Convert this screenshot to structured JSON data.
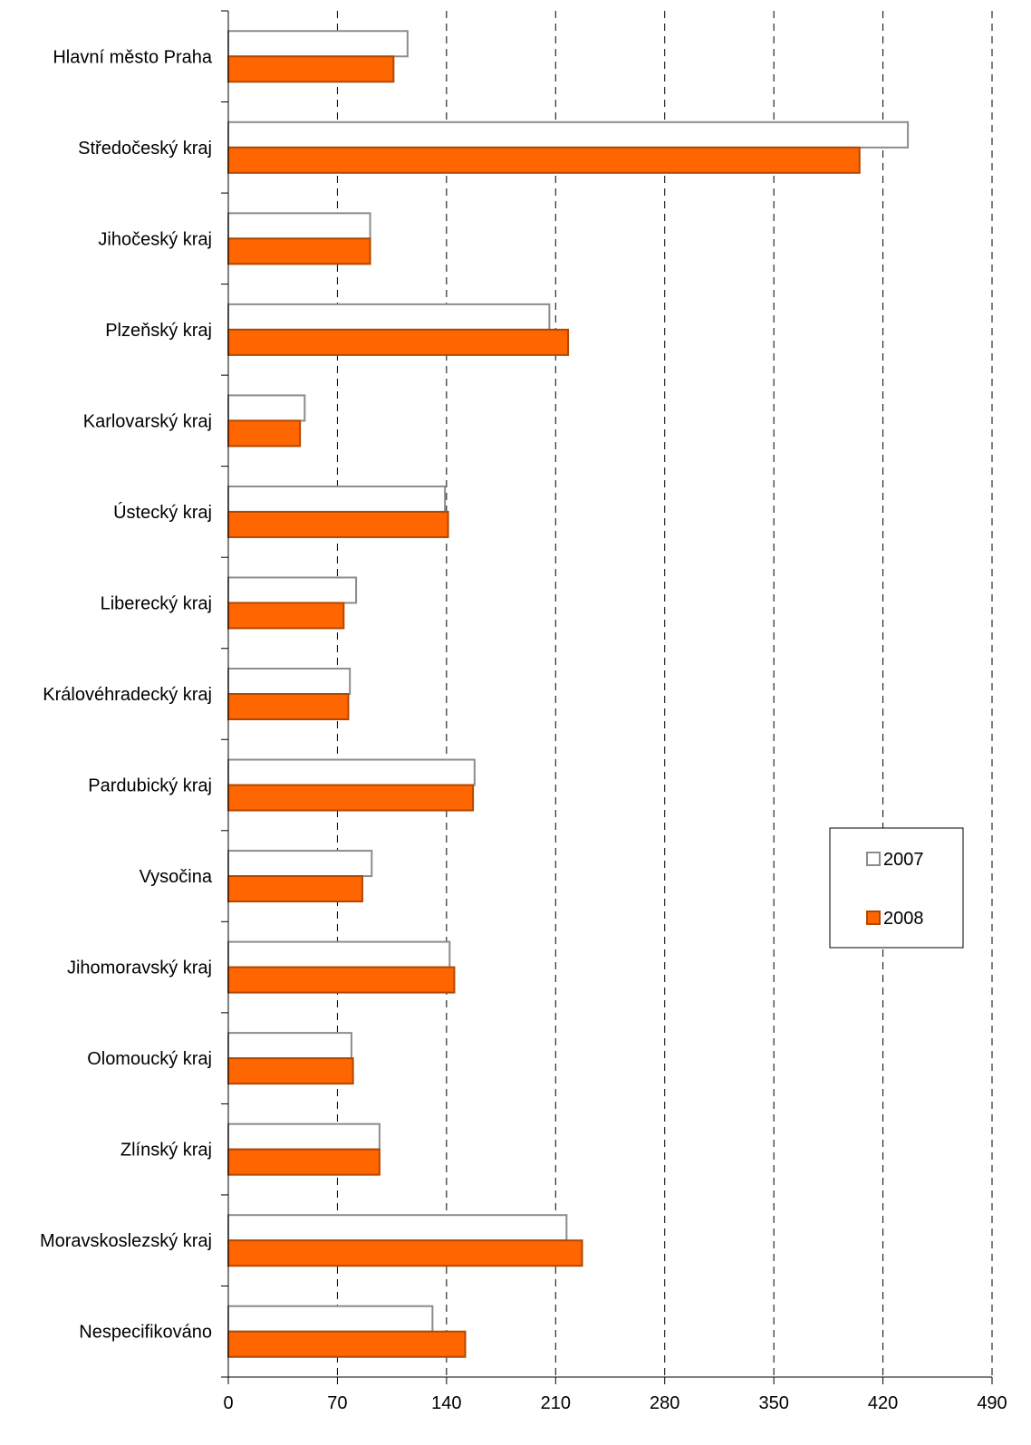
{
  "colors": {
    "series_2007_fill": "#ffffff",
    "series_2007_stroke": "#8c8c8c",
    "series_2008_fill": "#ff6600",
    "series_2008_stroke": "#b34700",
    "gridline": "#000000",
    "axis": "#000000"
  },
  "chart_data": {
    "type": "bar",
    "orientation": "horizontal",
    "categories": [
      "Hlavní město Praha",
      "Středočeský kraj",
      "Jihočeský kraj",
      "Plzeňský kraj",
      "Karlovarský kraj",
      "Ústecký kraj",
      "Liberecký kraj",
      "Královéhradecký kraj",
      "Pardubický kraj",
      "Vysočina",
      "Jihomoravský kraj",
      "Olomoucký kraj",
      "Zlínský kraj",
      "Moravskoslezský kraj",
      "Nespecifikováno"
    ],
    "series": [
      {
        "name": "2007",
        "values": [
          115,
          436,
          91,
          206,
          49,
          139,
          82,
          78,
          158,
          92,
          142,
          79,
          97,
          217,
          131
        ]
      },
      {
        "name": "2008",
        "values": [
          106,
          405,
          91,
          218,
          46,
          141,
          74,
          77,
          157,
          86,
          145,
          80,
          97,
          227,
          152
        ]
      }
    ],
    "xlim": [
      0,
      490
    ],
    "xticks": [
      0,
      70,
      140,
      210,
      280,
      350,
      420,
      490
    ],
    "grid": "vertical dashed",
    "legend": {
      "position": "right",
      "entries": [
        "2007",
        "2008"
      ]
    },
    "title": "",
    "xlabel": "",
    "ylabel": ""
  }
}
